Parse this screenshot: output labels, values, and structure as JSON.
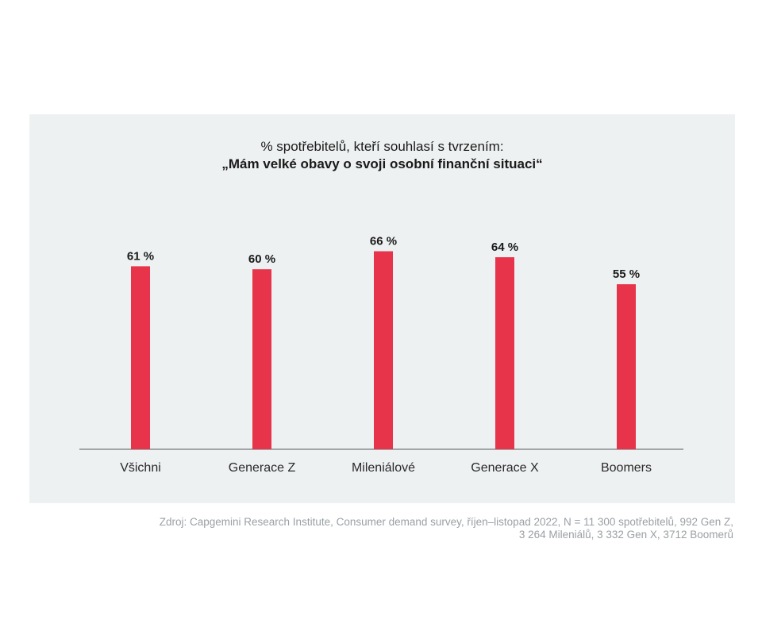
{
  "chart_data": {
    "type": "bar",
    "title_line1": "% spotřebitelů, kteří souhlasí s tvrzením:",
    "title_line2": "„Mám velké obavy o svoji osobní finanční situaci“",
    "categories": [
      "Všichni",
      "Generace Z",
      "Mileniálové",
      "Generace X",
      "Boomers"
    ],
    "values": [
      61,
      60,
      66,
      64,
      55
    ],
    "value_labels": [
      "61 %",
      "60 %",
      "66 %",
      "64 %",
      "55 %"
    ],
    "ylim": [
      0,
      100
    ],
    "bar_color": "#e8344a",
    "grid": false,
    "xlabel": "",
    "ylabel": ""
  },
  "source": {
    "line1": "Zdroj: Capgemini Research Institute, Consumer demand survey, říjen–listopad 2022, N = 11 300 spotřebitelů, 992 Gen Z,",
    "line2": "3 264 Mileniálů, 3 332 Gen X, 3712 Boomerů"
  }
}
